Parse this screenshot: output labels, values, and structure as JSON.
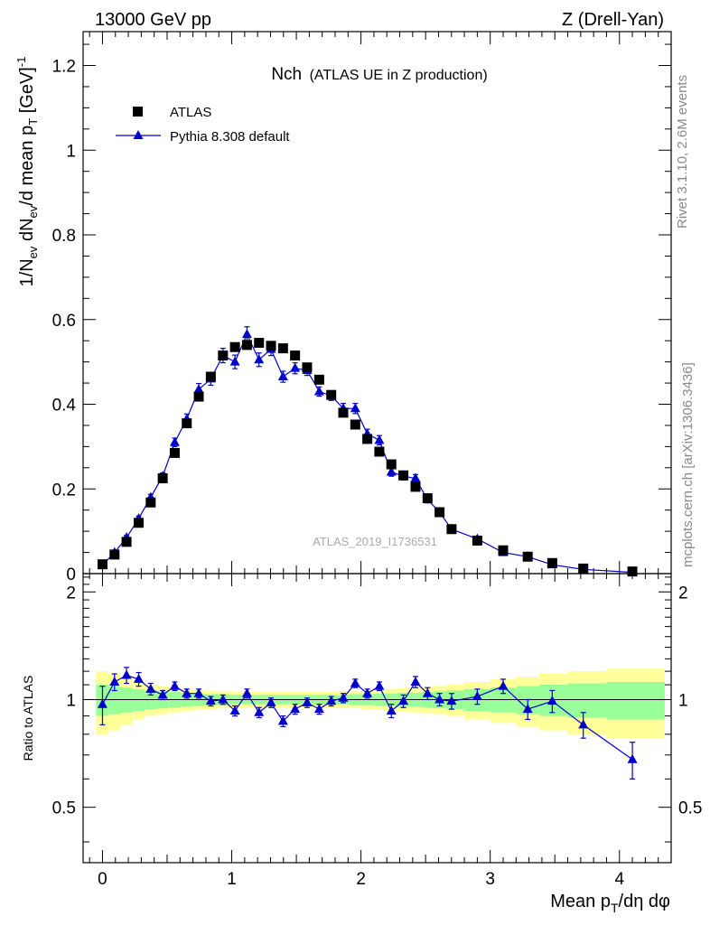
{
  "header": {
    "left": "13000 GeV pp",
    "right": "Z (Drell-Yan)"
  },
  "title": {
    "main": "Nch",
    "sub": "(ATLAS UE in Z production)"
  },
  "side_labels": {
    "rivet": "Rivet 3.1.10,  2.6M events",
    "mcplots": "mcplots.cern.ch [arXiv:1306.3436]"
  },
  "watermark": "ATLAS_2019_I1736531",
  "colors": {
    "data": "#000000",
    "mc": "#0000cc",
    "band_inner": "#99ff99",
    "band_outer": "#ffff99"
  },
  "chart_data": [
    {
      "type": "scatter",
      "panel": "main",
      "ylabel": "1/N_ev dN_ev/d mean p_T [GeV]^-1",
      "xlim": [
        -0.15,
        4.4
      ],
      "ylim": [
        0,
        1.28
      ],
      "yticks": [
        "0",
        "0.2",
        "0.4",
        "0.6",
        "0.8",
        "1",
        "1.2"
      ],
      "legend": {
        "placement": "top-left",
        "entries": [
          "ATLAS",
          "Pythia 8.308 default"
        ]
      },
      "x": [
        0.0,
        0.093,
        0.186,
        0.28,
        0.373,
        0.466,
        0.559,
        0.652,
        0.745,
        0.838,
        0.932,
        1.025,
        1.118,
        1.211,
        1.304,
        1.397,
        1.49,
        1.583,
        1.677,
        1.77,
        1.863,
        1.956,
        2.049,
        2.142,
        2.235,
        2.328,
        2.422,
        2.515,
        2.608,
        2.701,
        2.9,
        3.1,
        3.29,
        3.48,
        3.72,
        4.1
      ],
      "series": [
        {
          "name": "ATLAS",
          "values": [
            0.022,
            0.045,
            0.075,
            0.12,
            0.168,
            0.225,
            0.285,
            0.355,
            0.418,
            0.465,
            0.515,
            0.535,
            0.54,
            0.545,
            0.538,
            0.532,
            0.515,
            0.487,
            0.458,
            0.422,
            0.38,
            0.352,
            0.318,
            0.288,
            0.258,
            0.232,
            0.205,
            0.178,
            0.145,
            0.105,
            0.078,
            0.055,
            0.04,
            0.025,
            0.012,
            0.005
          ]
        },
        {
          "name": "Pythia 8.308 default",
          "values": [
            0.02,
            0.05,
            0.085,
            0.13,
            0.18,
            0.23,
            0.31,
            0.365,
            0.435,
            0.46,
            0.515,
            0.5,
            0.565,
            0.505,
            0.53,
            0.465,
            0.485,
            0.48,
            0.43,
            0.42,
            0.39,
            0.39,
            0.33,
            0.315,
            0.24,
            0.23,
            0.225,
            0.175,
            0.145,
            0.105,
            0.082,
            0.05,
            0.04,
            0.021,
            0.01,
            0.003
          ],
          "errors": [
            0.004,
            0.004,
            0.005,
            0.006,
            0.007,
            0.008,
            0.01,
            0.012,
            0.014,
            0.015,
            0.017,
            0.016,
            0.018,
            0.016,
            0.015,
            0.013,
            0.013,
            0.012,
            0.011,
            0.011,
            0.012,
            0.012,
            0.011,
            0.011,
            0.01,
            0.009,
            0.009,
            0.008,
            0.007,
            0.006,
            0.005,
            0.004,
            0.003,
            0.002,
            0.002,
            0.001
          ]
        }
      ]
    },
    {
      "type": "scatter",
      "panel": "ratio",
      "ylabel": "Ratio to ATLAS",
      "xlabel": "Mean p_T/dη dφ",
      "xlim": [
        -0.15,
        4.4
      ],
      "ylim": [
        0.35,
        2.25
      ],
      "yticks": [
        "0.5",
        "1",
        "2"
      ],
      "xticks": [
        "0",
        "1",
        "2",
        "3",
        "4"
      ],
      "x": [
        0.0,
        0.093,
        0.186,
        0.28,
        0.373,
        0.466,
        0.559,
        0.652,
        0.745,
        0.838,
        0.932,
        1.025,
        1.118,
        1.211,
        1.304,
        1.397,
        1.49,
        1.583,
        1.677,
        1.77,
        1.863,
        1.956,
        2.049,
        2.142,
        2.235,
        2.328,
        2.422,
        2.515,
        2.608,
        2.701,
        2.9,
        3.1,
        3.29,
        3.48,
        3.72,
        4.1
      ],
      "band_bins": [
        -0.05,
        0.045,
        0.14,
        0.233,
        0.326,
        0.42,
        0.513,
        0.606,
        0.7,
        0.79,
        0.885,
        0.978,
        1.07,
        1.165,
        1.258,
        1.35,
        1.445,
        1.538,
        1.63,
        1.723,
        1.816,
        1.91,
        2.003,
        2.096,
        2.19,
        2.282,
        2.375,
        2.468,
        2.56,
        2.655,
        2.8,
        3.0,
        3.2,
        3.38,
        3.6,
        3.9,
        4.35
      ],
      "band_inner": [
        0.1,
        0.09,
        0.08,
        0.07,
        0.06,
        0.055,
        0.05,
        0.045,
        0.04,
        0.035,
        0.035,
        0.03,
        0.03,
        0.03,
        0.03,
        0.03,
        0.03,
        0.03,
        0.03,
        0.03,
        0.03,
        0.035,
        0.035,
        0.04,
        0.04,
        0.045,
        0.045,
        0.05,
        0.055,
        0.06,
        0.07,
        0.08,
        0.09,
        0.1,
        0.11,
        0.12
      ],
      "band_outer": [
        0.2,
        0.18,
        0.15,
        0.12,
        0.1,
        0.09,
        0.08,
        0.07,
        0.065,
        0.06,
        0.055,
        0.05,
        0.05,
        0.05,
        0.05,
        0.05,
        0.05,
        0.05,
        0.05,
        0.05,
        0.055,
        0.055,
        0.06,
        0.065,
        0.07,
        0.075,
        0.08,
        0.085,
        0.09,
        0.1,
        0.12,
        0.14,
        0.16,
        0.18,
        0.2,
        0.22
      ],
      "series": [
        {
          "name": "Pythia 8.308 default",
          "values": [
            0.97,
            1.12,
            1.17,
            1.14,
            1.07,
            1.03,
            1.09,
            1.04,
            1.04,
            0.99,
            1.0,
            0.93,
            1.04,
            0.92,
            0.98,
            0.87,
            0.94,
            0.98,
            0.94,
            0.99,
            1.01,
            1.11,
            1.04,
            1.09,
            0.93,
            0.99,
            1.12,
            1.04,
            1.0,
            0.99,
            1.02,
            1.09,
            0.94,
            0.99,
            0.85,
            0.68
          ],
          "errors": [
            0.12,
            0.06,
            0.06,
            0.05,
            0.04,
            0.03,
            0.03,
            0.03,
            0.03,
            0.03,
            0.03,
            0.03,
            0.03,
            0.03,
            0.03,
            0.03,
            0.03,
            0.03,
            0.03,
            0.03,
            0.03,
            0.03,
            0.03,
            0.03,
            0.04,
            0.04,
            0.04,
            0.04,
            0.04,
            0.05,
            0.05,
            0.05,
            0.06,
            0.07,
            0.07,
            0.08
          ]
        }
      ]
    }
  ]
}
